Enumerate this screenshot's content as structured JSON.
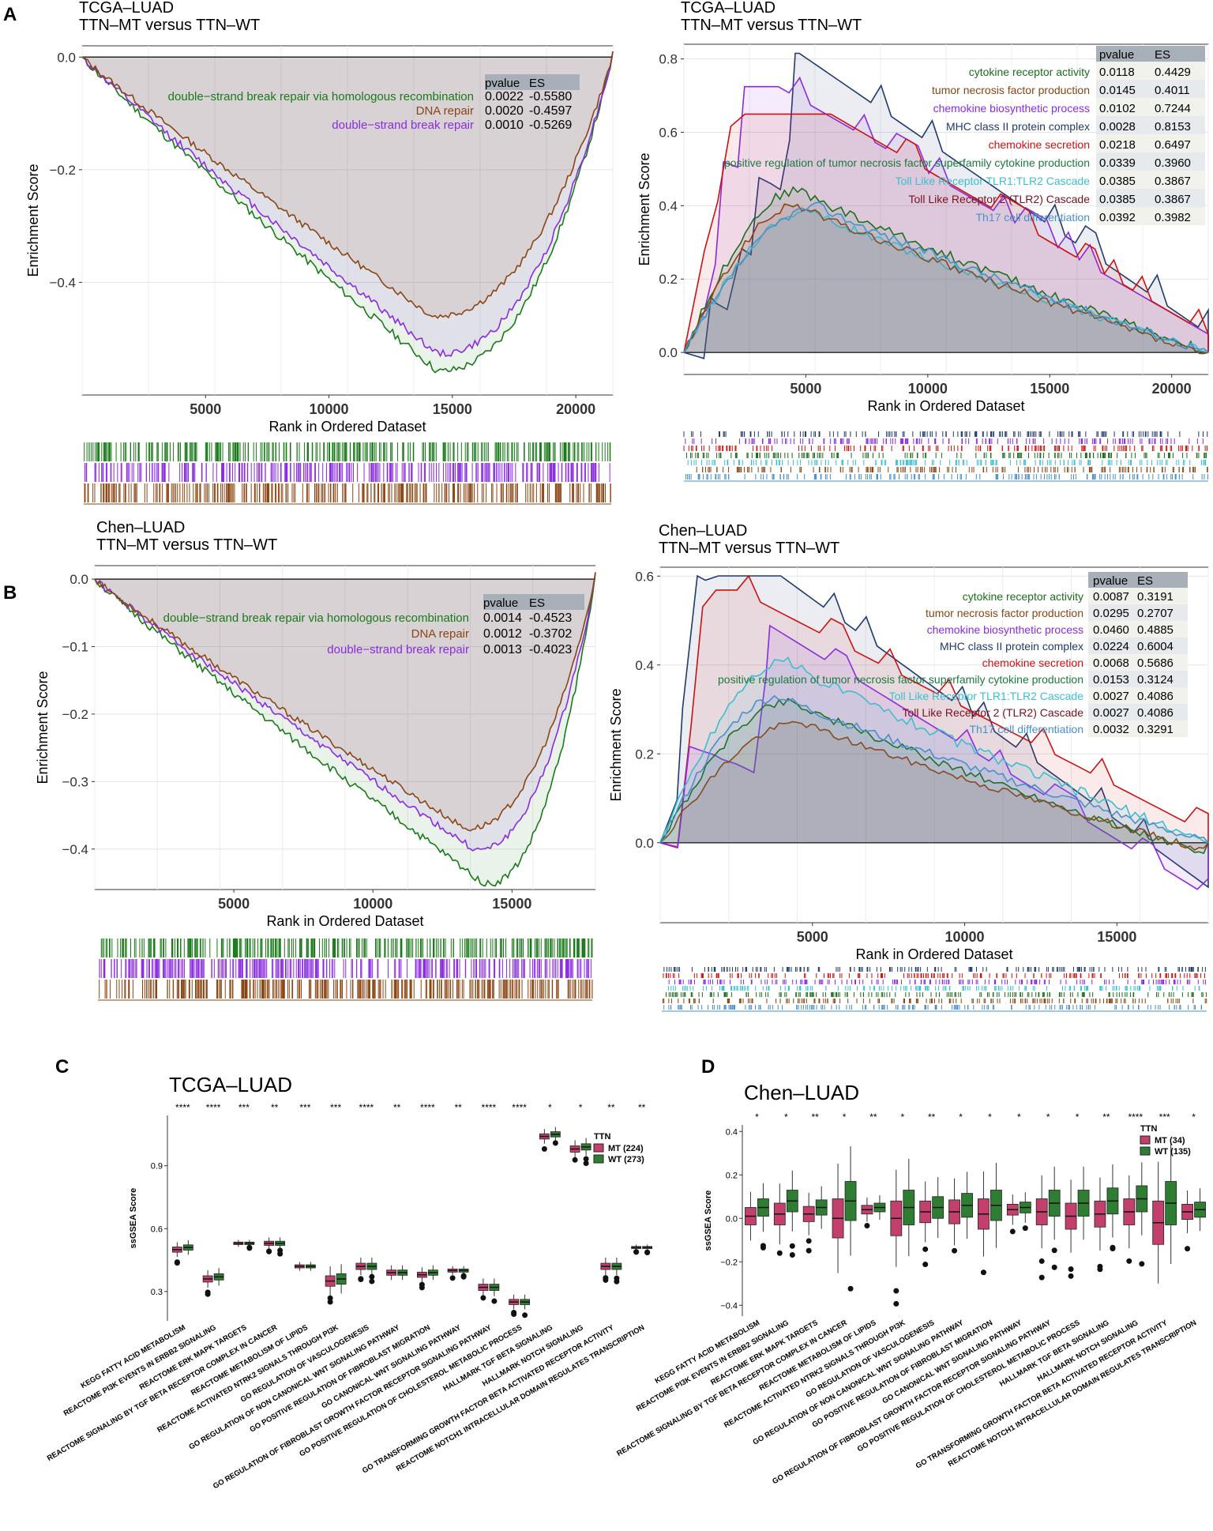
{
  "colors": {
    "dsb_hr": "#1a7a1a",
    "dna_repair": "#8b4513",
    "dsb": "#8a2be2",
    "cytokine_receptor": "#1b6e1b",
    "tnf_production": "#8b4513",
    "chemokine_bio": "#8a2be2",
    "mhc": "#1f3a6e",
    "chemokine_sec": "#cc1111",
    "pos_reg_tnf": "#1b7a3e",
    "tlr1_tlr2": "#3bbfd0",
    "tlr2": "#7a1020",
    "th17": "#4a8fc9",
    "mt_box": "#c2406b",
    "wt_box": "#2e7d32"
  },
  "panels": {
    "A": {
      "letter": "A",
      "left": {
        "title_line1": "TCGA–LUAD",
        "title_line2": "TTN–MT versus TTN–WT",
        "ylabel": "Enrichment Score",
        "xlabel": "Rank in Ordered Dataset",
        "yticks": [
          "0.0",
          "−0.2",
          "−0.4"
        ],
        "xticks": [
          "5000",
          "10000",
          "15000",
          "20000"
        ],
        "table_header": [
          "pvalue",
          "ES"
        ],
        "rows": [
          {
            "name": "double−strand break repair via homologous recombination",
            "pvalue": "0.0022",
            "es": "-0.5580",
            "color_key": "dsb_hr"
          },
          {
            "name": "DNA repair",
            "pvalue": "0.0020",
            "es": "-0.4597",
            "color_key": "dna_repair"
          },
          {
            "name": "double−strand break repair",
            "pvalue": "0.0010",
            "es": "-0.5269",
            "color_key": "dsb"
          }
        ]
      },
      "right": {
        "title_line1": "TCGA–LUAD",
        "title_line2": "TTN–MT versus TTN–WT",
        "ylabel": "Enrichment Score",
        "xlabel": "Rank in Ordered Dataset",
        "yticks": [
          "0.8",
          "0.6",
          "0.4",
          "0.2",
          "0.0"
        ],
        "xticks": [
          "5000",
          "10000",
          "15000",
          "20000"
        ],
        "table_header": [
          "pvalue",
          "ES"
        ],
        "rows": [
          {
            "name": "cytokine receptor activity",
            "pvalue": "0.0118",
            "es": "0.4429",
            "color_key": "cytokine_receptor"
          },
          {
            "name": "tumor necrosis factor production",
            "pvalue": "0.0145",
            "es": "0.4011",
            "color_key": "tnf_production"
          },
          {
            "name": "chemokine biosynthetic process",
            "pvalue": "0.0102",
            "es": "0.7244",
            "color_key": "chemokine_bio"
          },
          {
            "name": "MHC class II protein complex",
            "pvalue": "0.0028",
            "es": "0.8153",
            "color_key": "mhc"
          },
          {
            "name": "chemokine secretion",
            "pvalue": "0.0218",
            "es": "0.6497",
            "color_key": "chemokine_sec"
          },
          {
            "name": "positive regulation of tumor necrosis factor superfamily cytokine production",
            "pvalue": "0.0339",
            "es": "0.3960",
            "color_key": "pos_reg_tnf"
          },
          {
            "name": "Toll Like Receptor TLR1:TLR2 Cascade",
            "pvalue": "0.0385",
            "es": "0.3867",
            "color_key": "tlr1_tlr2"
          },
          {
            "name": "Toll Like Receptor 2 (TLR2) Cascade",
            "pvalue": "0.0385",
            "es": "0.3867",
            "color_key": "tlr2"
          },
          {
            "name": "Th17 cell differentiation",
            "pvalue": "0.0392",
            "es": "0.3982",
            "color_key": "th17"
          }
        ]
      }
    },
    "B": {
      "letter": "B",
      "left": {
        "title_line1": "Chen–LUAD",
        "title_line2": "TTN–MT versus TTN–WT",
        "ylabel": "Enrichment Score",
        "xlabel": "Rank in Ordered Dataset",
        "yticks": [
          "0.0",
          "−0.1",
          "−0.2",
          "−0.3",
          "−0.4"
        ],
        "xticks": [
          "5000",
          "10000",
          "15000"
        ],
        "table_header": [
          "pvalue",
          "ES"
        ],
        "rows": [
          {
            "name": "double−strand break repair via homologous recombination",
            "pvalue": "0.0014",
            "es": "-0.4523",
            "color_key": "dsb_hr"
          },
          {
            "name": "DNA repair",
            "pvalue": "0.0012",
            "es": "-0.3702",
            "color_key": "dna_repair"
          },
          {
            "name": "double−strand break repair",
            "pvalue": "0.0013",
            "es": "-0.4023",
            "color_key": "dsb"
          }
        ]
      },
      "right": {
        "title_line1": "Chen–LUAD",
        "title_line2": "TTN–MT versus TTN–WT",
        "ylabel": "Enrichment Score",
        "xlabel": "Rank in Ordered Dataset",
        "yticks": [
          "0.6",
          "0.4",
          "0.2",
          "0.0"
        ],
        "xticks": [
          "5000",
          "10000",
          "15000"
        ],
        "table_header": [
          "pvalue",
          "ES"
        ],
        "rows": [
          {
            "name": "cytokine receptor activity",
            "pvalue": "0.0087",
            "es": "0.3191",
            "color_key": "cytokine_receptor"
          },
          {
            "name": "tumor necrosis factor production",
            "pvalue": "0.0295",
            "es": "0.2707",
            "color_key": "tnf_production"
          },
          {
            "name": "chemokine biosynthetic process",
            "pvalue": "0.0460",
            "es": "0.4885",
            "color_key": "chemokine_bio"
          },
          {
            "name": "MHC class II protein complex",
            "pvalue": "0.0224",
            "es": "0.6004",
            "color_key": "mhc"
          },
          {
            "name": "chemokine secretion",
            "pvalue": "0.0068",
            "es": "0.5686",
            "color_key": "chemokine_sec"
          },
          {
            "name": "positive regulation of tumor necrosis factor superfamily cytokine production",
            "pvalue": "0.0153",
            "es": "0.3124",
            "color_key": "pos_reg_tnf"
          },
          {
            "name": "Toll Like Receptor TLR1:TLR2 Cascade",
            "pvalue": "0.0027",
            "es": "0.4086",
            "color_key": "tlr1_tlr2"
          },
          {
            "name": "Toll Like Receptor 2 (TLR2) Cascade",
            "pvalue": "0.0027",
            "es": "0.4086",
            "color_key": "tlr2"
          },
          {
            "name": "Th17 cell differentiation",
            "pvalue": "0.0032",
            "es": "0.3291",
            "color_key": "th17"
          }
        ]
      }
    },
    "C": {
      "letter": "C",
      "title": "TCGA–LUAD",
      "ylabel": "ssGSEA Score",
      "yticks": [
        "0.9",
        "0.6",
        "0.3"
      ],
      "legend_title": "TTN",
      "legend_mt": "MT (224)",
      "legend_wt": "WT (273)"
    },
    "D": {
      "letter": "D",
      "title": "Chen–LUAD",
      "ylabel": "ssGSEA Score",
      "yticks": [
        "0.4",
        "0.2",
        "0.0",
        "−0.2",
        "−0.4"
      ],
      "legend_title": "TTN",
      "legend_mt": "MT (34)",
      "legend_wt": "WT (135)"
    }
  },
  "chart_data": [
    {
      "type": "line",
      "title": "TCGA-LUAD TTN-MT versus TTN-WT (A, left)",
      "xlabel": "Rank in Ordered Dataset",
      "ylabel": "Enrichment Score",
      "xlim": [
        0,
        21500
      ],
      "ylim": [
        -0.6,
        0.02
      ],
      "series": [
        {
          "name": "double-strand break repair via homologous recombination",
          "es": -0.558
        },
        {
          "name": "DNA repair",
          "es": -0.4597
        },
        {
          "name": "double-strand break repair",
          "es": -0.5269
        }
      ]
    },
    {
      "type": "line",
      "title": "TCGA-LUAD TTN-MT versus TTN-WT (A, right)",
      "xlabel": "Rank in Ordered Dataset",
      "ylabel": "Enrichment Score",
      "xlim": [
        0,
        21500
      ],
      "ylim": [
        -0.06,
        0.84
      ]
    },
    {
      "type": "line",
      "title": "Chen-LUAD TTN-MT versus TTN-WT (B, left)",
      "xlabel": "Rank in Ordered Dataset",
      "ylabel": "Enrichment Score",
      "xlim": [
        0,
        18000
      ],
      "ylim": [
        -0.46,
        0.02
      ]
    },
    {
      "type": "line",
      "title": "Chen-LUAD TTN-MT versus TTN-WT (B, right)",
      "xlabel": "Rank in Ordered Dataset",
      "ylabel": "Enrichment Score",
      "xlim": [
        0,
        18000
      ],
      "ylim": [
        -0.18,
        0.62
      ]
    },
    {
      "type": "box",
      "title": "TCGA-LUAD",
      "ylabel": "ssGSEA Score",
      "ylim": [
        0.16,
        1.14
      ],
      "categories": [
        "KEGG FATTY ACID METABOLISM",
        "REACTOME PI3K EVENTS IN ERBB2 SIGNALING",
        "REACTOME ERK MAPK TARGETS",
        "REACTOME SIGNALING BY TGF BETA RECEPTOR COMPLEX IN CANCER",
        "REACTOME METABOLISM OF LIPIDS",
        "REACTOME ACTIVATED NTRK2 SIGNALS THROUGH PI3K",
        "GO REGULATION OF VASCULOGENESIS",
        "GO REGULATION OF NON CANONICAL WNT SIGNALING PATHWAY",
        "GO POSITIVE REGULATION OF FIBROBLAST MIGRATION",
        "GO CANONICAL WNT SIGNALING PATHWAY",
        "GO REGULATION OF FIBROBLAST GROWTH FACTOR RECEPTOR SIGNALING PATHWAY",
        "GO POSITIVE REGULATION OF CHOLESTEROL METABOLIC PROCESS",
        "HALLMARK TGF BETA SIGNALING",
        "HALLMARK NOTCH SIGNALING",
        "GO TRANSFORMING GROWTH FACTOR BETA ACTIVATED RECEPTOR ACTIVITY",
        "REACTOME NOTCH1 INTRACELLULAR DOMAIN REGULATES TRANSCRIPTION"
      ],
      "significance": [
        "****",
        "****",
        "***",
        "**",
        "***",
        "***",
        "****",
        "**",
        "****",
        "**",
        "****",
        "****",
        "*",
        "*",
        "**",
        "**"
      ],
      "series": [
        {
          "name": "MT (224)",
          "median": [
            0.5,
            0.36,
            0.53,
            0.53,
            0.42,
            0.35,
            0.42,
            0.39,
            0.38,
            0.4,
            0.32,
            0.25,
            1.04,
            0.98,
            0.42,
            0.51
          ]
        },
        {
          "name": "WT (273)",
          "median": [
            0.51,
            0.37,
            0.53,
            0.53,
            0.42,
            0.36,
            0.42,
            0.39,
            0.39,
            0.4,
            0.32,
            0.25,
            1.05,
            0.99,
            0.42,
            0.51
          ]
        }
      ]
    },
    {
      "type": "box",
      "title": "Chen-LUAD",
      "ylabel": "ssGSEA Score",
      "ylim": [
        -0.45,
        0.43
      ],
      "categories": [
        "KEGG FATTY ACID METABOLISM",
        "REACTOME PI3K EVENTS IN ERBB2 SIGNALING",
        "REACTOME ERK MAPK TARGETS",
        "REACTOME SIGNALING BY TGF BETA RECEPTOR COMPLEX IN CANCER",
        "REACTOME METABOLISM OF LIPIDS",
        "REACTOME ACTIVATED NTRK2 SIGNALS THROUGH PI3K",
        "GO REGULATION OF VASCULOGENESIS",
        "GO REGULATION OF NON CANONICAL WNT SIGNALING PATHWAY",
        "GO POSITIVE REGULATION OF FIBROBLAST MIGRATION",
        "GO CANONICAL WNT SIGNALING PATHWAY",
        "GO REGULATION OF FIBROBLAST GROWTH FACTOR RECEPTOR SIGNALING PATHWAY",
        "GO POSITIVE REGULATION OF CHOLESTEROL METABOLIC PROCESS",
        "HALLMARK TGF BETA SIGNALING",
        "HALLMARK NOTCH SIGNALING",
        "GO TRANSFORMING GROWTH FACTOR BETA ACTIVATED RECEPTOR ACTIVITY",
        "REACTOME NOTCH1 INTRACELLULAR DOMAIN REGULATES TRANSCRIPTION"
      ],
      "significance": [
        "*",
        "*",
        "**",
        "*",
        "**",
        "*",
        "**",
        "*",
        "*",
        "*",
        "*",
        "*",
        "**",
        "****",
        "***",
        "*"
      ],
      "series": [
        {
          "name": "MT (34)",
          "median": [
            0.01,
            0.02,
            0.02,
            0.0,
            0.04,
            0.0,
            0.03,
            0.03,
            0.02,
            0.04,
            0.03,
            0.01,
            0.02,
            0.03,
            -0.02,
            0.03
          ]
        },
        {
          "name": "WT (135)",
          "median": [
            0.05,
            0.08,
            0.05,
            0.08,
            0.05,
            0.05,
            0.05,
            0.06,
            0.06,
            0.05,
            0.07,
            0.07,
            0.08,
            0.09,
            0.07,
            0.04
          ]
        }
      ]
    }
  ]
}
